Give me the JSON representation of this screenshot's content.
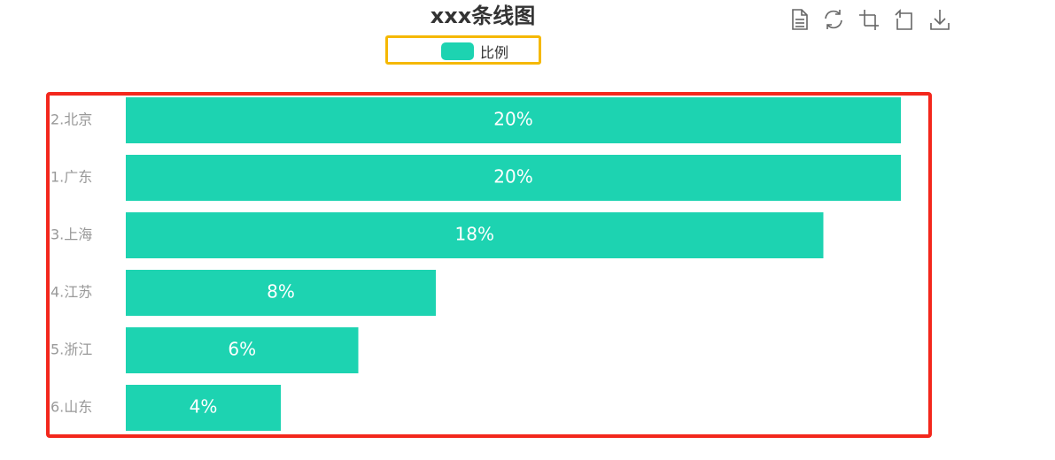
{
  "chart_data": {
    "type": "bar",
    "orientation": "horizontal",
    "title": "xxx条线图",
    "categories": [
      "2.北京",
      "1.广东",
      "3.上海",
      "4.江苏",
      "5.浙江",
      "6.山东"
    ],
    "series": [
      {
        "name": "比例",
        "values": [
          20,
          20,
          18,
          8,
          6,
          4
        ],
        "labels": [
          "20%",
          "20%",
          "18%",
          "8%",
          "6%",
          "4%"
        ],
        "color": "#1dd3b1"
      }
    ],
    "xlim": [
      0,
      20
    ],
    "grid": false,
    "legend": "top-center"
  },
  "toolbox": {
    "icons": [
      "data-view-icon",
      "refresh-icon",
      "crop-icon",
      "restore-icon",
      "download-icon"
    ]
  },
  "annotations": {
    "legend_highlight_color": "#f5b800",
    "plot_highlight_color": "#f3271c"
  }
}
